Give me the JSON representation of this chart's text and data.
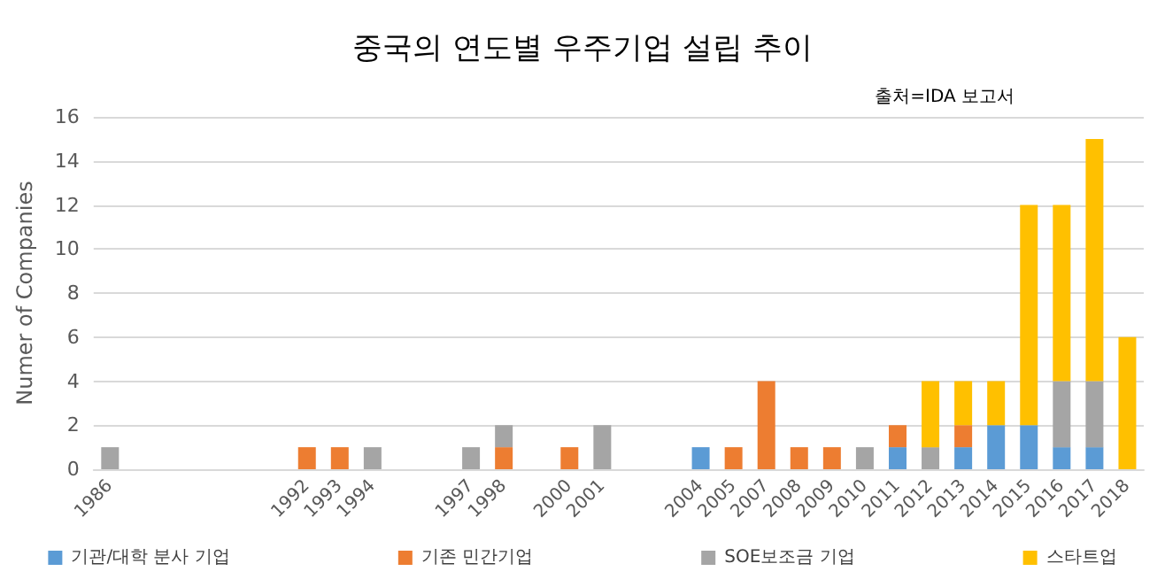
{
  "chart_data": {
    "type": "bar",
    "title": "중국의 연도별 우주기업 설립 추이",
    "annotations": [
      "출처=IDA 보고서"
    ],
    "ylabel": "Numer of Companies",
    "categories": [
      "1986",
      null,
      null,
      null,
      null,
      null,
      "1992",
      "1993",
      "1994",
      null,
      null,
      "1997",
      "1998",
      null,
      "2000",
      "2001",
      null,
      null,
      "2004",
      "2005",
      "2007",
      "2008",
      "2009",
      "2010",
      "2011",
      "2012",
      "2013",
      "2014",
      "2015",
      "2016",
      "2017",
      "2018"
    ],
    "stacked": true,
    "series": [
      {
        "name": "기관/대학 분사 기업",
        "color": "#5b9bd5",
        "values": [
          null,
          null,
          null,
          null,
          null,
          null,
          null,
          null,
          null,
          null,
          null,
          null,
          null,
          null,
          null,
          null,
          null,
          null,
          1,
          null,
          null,
          null,
          null,
          null,
          1,
          null,
          1,
          2,
          2,
          1,
          1,
          null
        ]
      },
      {
        "name": "기존 민간기업",
        "color": "#ed7d31",
        "values": [
          null,
          null,
          null,
          null,
          null,
          null,
          1,
          1,
          null,
          null,
          null,
          null,
          1,
          null,
          1,
          null,
          null,
          null,
          null,
          1,
          4,
          1,
          1,
          null,
          1,
          null,
          1,
          null,
          null,
          null,
          null,
          null
        ]
      },
      {
        "name": "SOE보조금 기업",
        "color": "#a5a5a5",
        "values": [
          1,
          null,
          null,
          null,
          null,
          null,
          null,
          null,
          1,
          null,
          null,
          1,
          1,
          null,
          null,
          2,
          null,
          null,
          null,
          null,
          null,
          null,
          null,
          1,
          null,
          1,
          null,
          null,
          null,
          3,
          3,
          null
        ]
      },
      {
        "name": "스타트업",
        "color": "#ffc000",
        "values": [
          null,
          null,
          null,
          null,
          null,
          null,
          null,
          null,
          null,
          null,
          null,
          null,
          null,
          null,
          null,
          null,
          null,
          null,
          null,
          null,
          null,
          null,
          null,
          null,
          null,
          3,
          2,
          2,
          10,
          8,
          11,
          6
        ]
      }
    ],
    "ylim": [
      0,
      16
    ],
    "yticks": [
      0,
      2,
      4,
      6,
      8,
      10,
      12,
      14,
      16
    ],
    "grid": "y",
    "legend": "bottom"
  }
}
